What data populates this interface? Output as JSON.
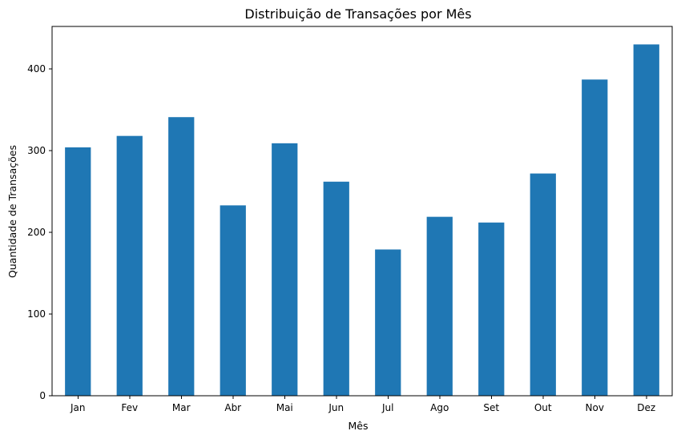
{
  "chart_data": {
    "type": "bar",
    "title": "Distribuição de Transações por Mês",
    "xlabel": "Mês",
    "ylabel": "Quantidade de Transações",
    "categories": [
      "Jan",
      "Fev",
      "Mar",
      "Abr",
      "Mai",
      "Jun",
      "Jul",
      "Ago",
      "Set",
      "Out",
      "Nov",
      "Dez"
    ],
    "values": [
      304,
      318,
      341,
      233,
      309,
      262,
      179,
      219,
      212,
      272,
      387,
      430
    ],
    "ylim": [
      0,
      452
    ],
    "yticks": [
      0,
      100,
      200,
      300,
      400
    ],
    "bar_color": "#1f77b4",
    "grid": false,
    "legend": "none"
  }
}
